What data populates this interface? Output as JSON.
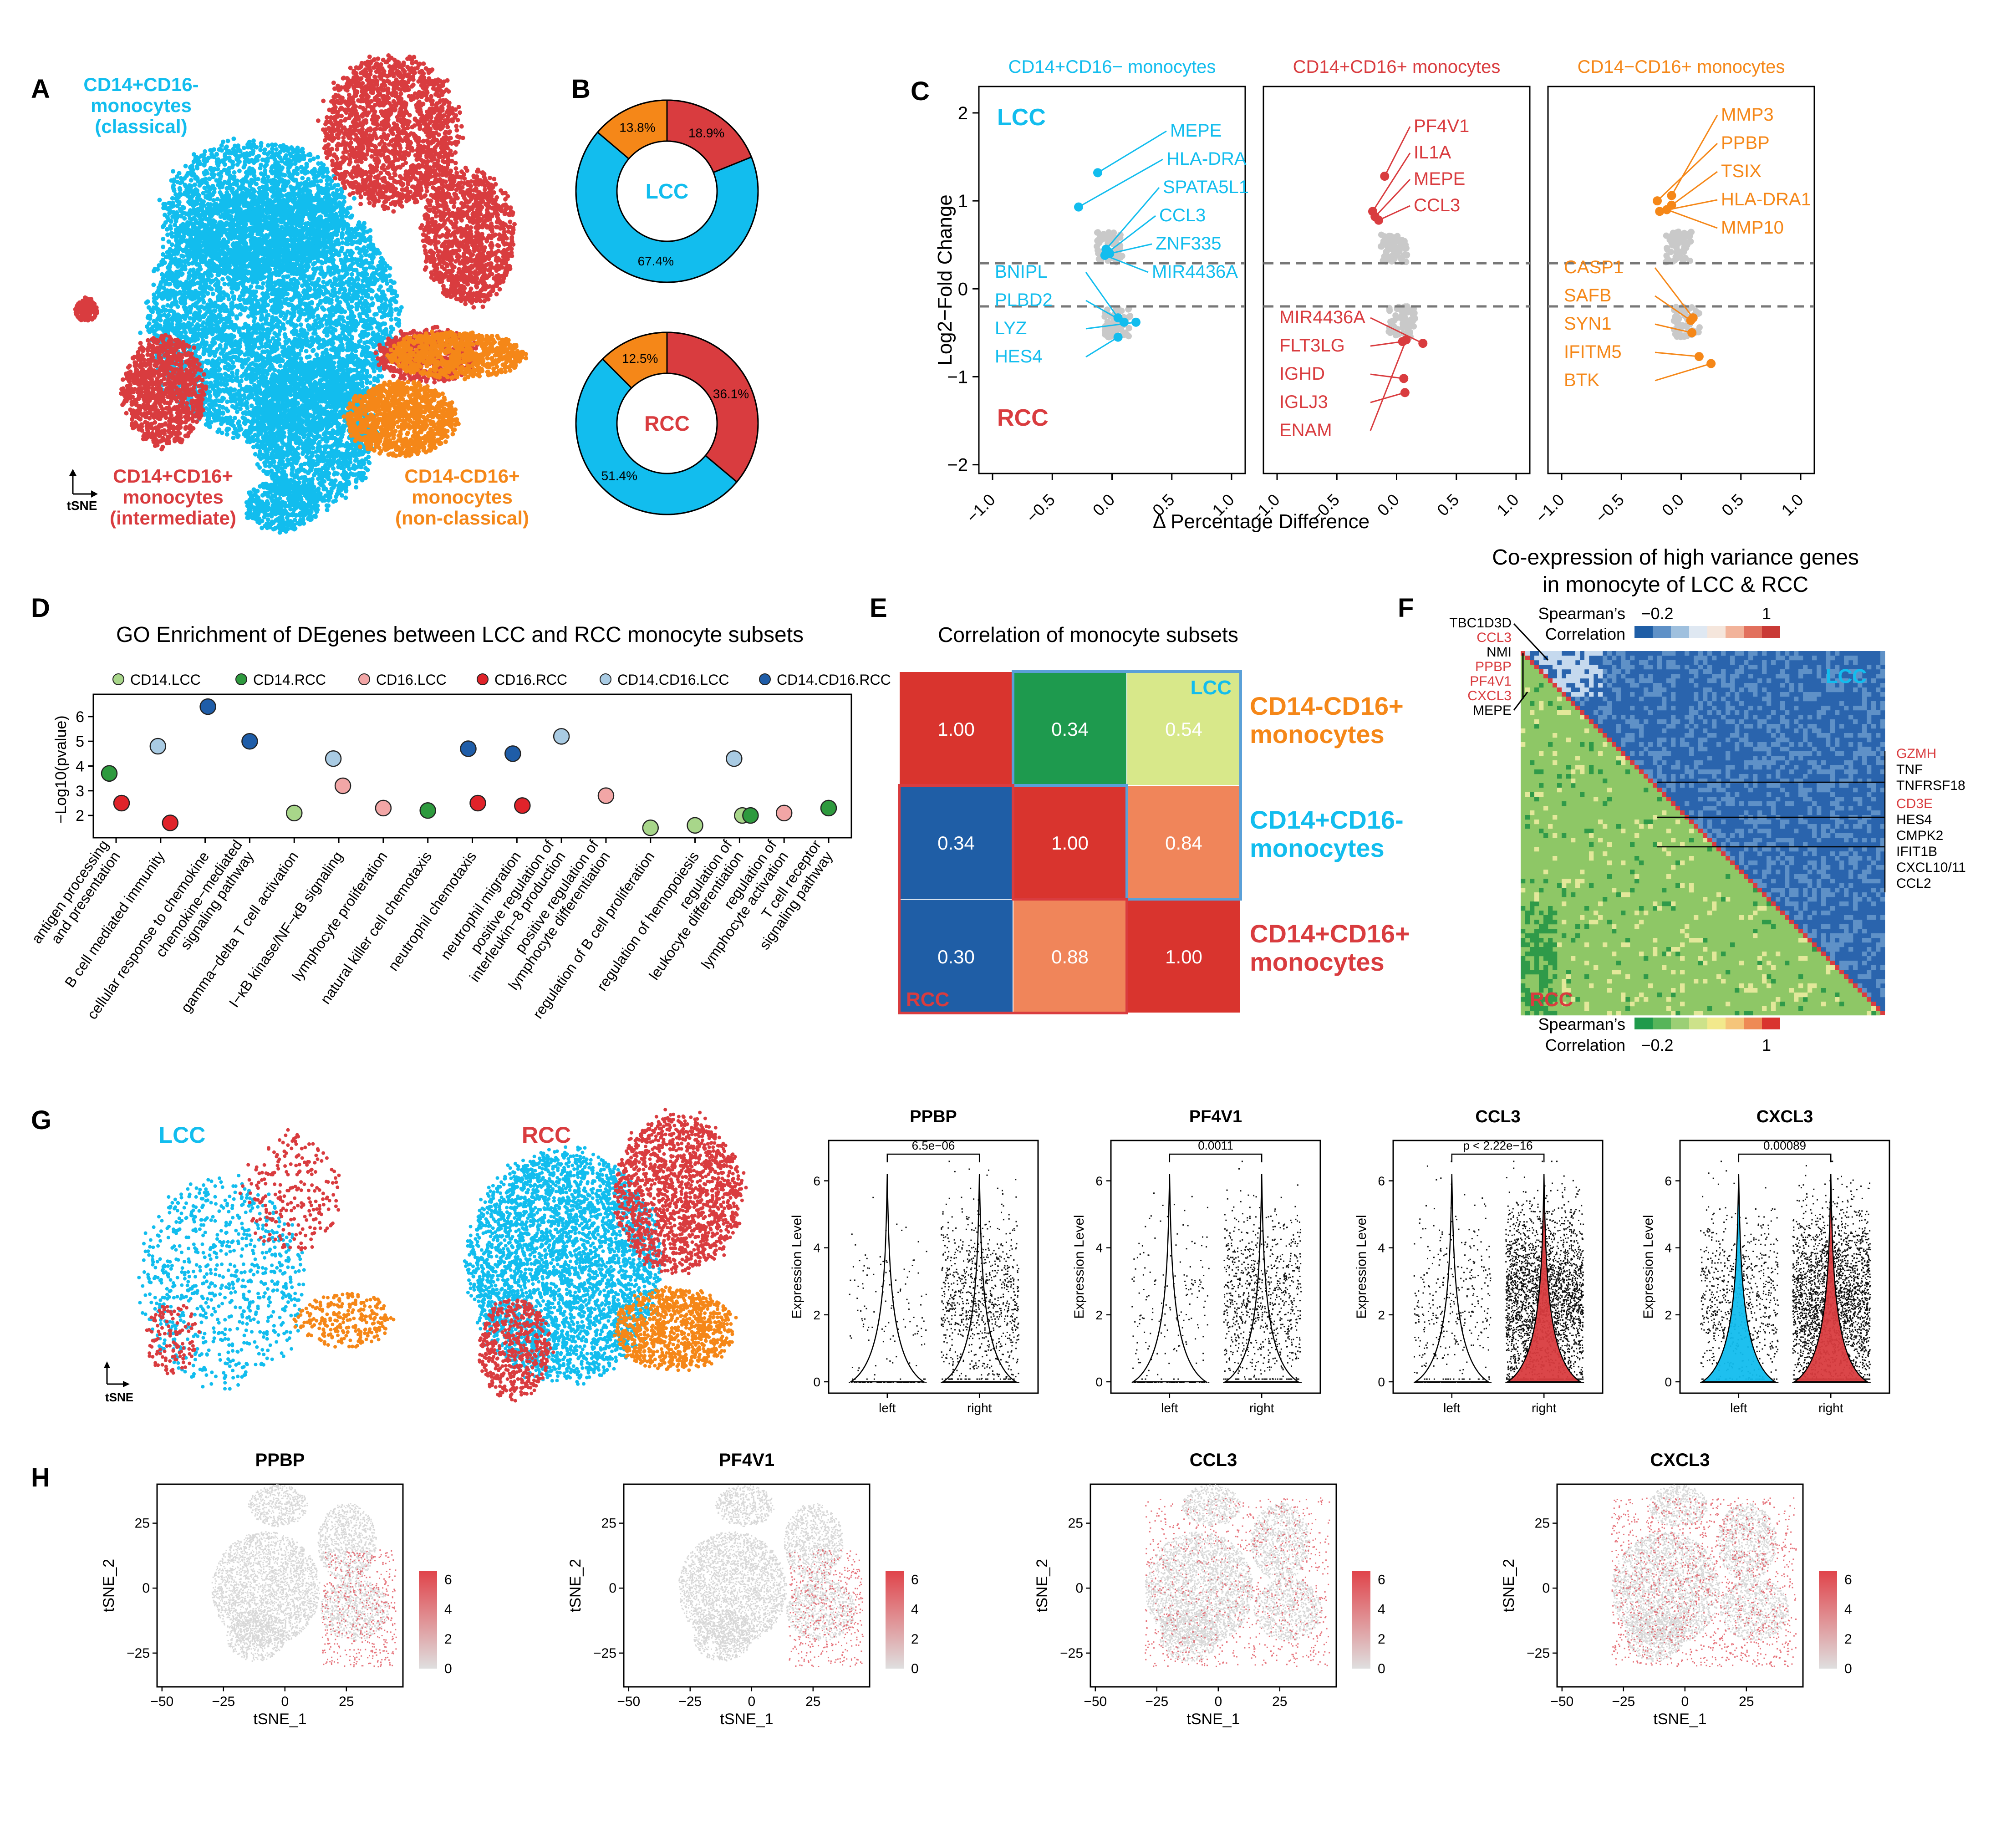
{
  "colors": {
    "lcc": "#12bdee",
    "rcc": "#d93c3f",
    "orange": "#f58718",
    "grey": "#c9c9c9",
    "heat_low": "#dfdfdf",
    "heat_high": "#e0434a",
    "dark_blue": "#1e5fa6",
    "mid_blue": "#5b8ec4",
    "light_blue_cell": "#9fc0de",
    "green_dark": "#2a9d4c",
    "green_light": "#92c871",
    "yellow_green": "#d7e68f"
  },
  "panels": {
    "A": "A",
    "B": "B",
    "C": "C",
    "D": "D",
    "E": "E",
    "F": "F",
    "G": "G",
    "H": "H"
  },
  "chart_data": [
    {
      "panel": "A",
      "type": "scatter",
      "title": "",
      "axis_label": "tSNE",
      "clusters": [
        {
          "label_lines": [
            "CD14+CD16-",
            "monocytes",
            "(classical)"
          ],
          "color": "lcc"
        },
        {
          "label_lines": [
            "CD14+CD16+",
            "monocytes",
            "(intermediate)"
          ],
          "color": "rcc"
        },
        {
          "label_lines": [
            "CD14-CD16+",
            "monocytes",
            "(non-classical)"
          ],
          "color": "orange"
        }
      ]
    },
    {
      "panel": "B",
      "type": "pie",
      "donuts": [
        {
          "center_label": "LCC",
          "slices": [
            {
              "name": "CD14+CD16+",
              "value": 18.9,
              "label": "18.9%",
              "color": "rcc"
            },
            {
              "name": "CD14+CD16-",
              "value": 67.4,
              "label": "67.4%",
              "color": "lcc"
            },
            {
              "name": "CD14-CD16+",
              "value": 13.8,
              "label": "13.8%",
              "color": "orange"
            }
          ]
        },
        {
          "center_label": "RCC",
          "slices": [
            {
              "name": "CD14+CD16+",
              "value": 36.1,
              "label": "36.1%",
              "color": "rcc"
            },
            {
              "name": "CD14+CD16-",
              "value": 51.4,
              "label": "51.4%",
              "color": "lcc"
            },
            {
              "name": "CD14-CD16+",
              "value": 12.5,
              "label": "12.5%",
              "color": "orange"
            }
          ]
        }
      ]
    },
    {
      "panel": "C",
      "type": "scatter",
      "ylabel": "Log2−Fold Change",
      "xlabel": "Δ Percentage Difference",
      "xlim": [
        -1.0,
        1.0
      ],
      "ylim": [
        -2.1,
        2.3
      ],
      "x_ticks": [
        "−1.0",
        "−0.5",
        "0.0",
        "0.5",
        "1.0"
      ],
      "x_tick_values": [
        -1.0,
        -0.5,
        0.0,
        0.5,
        1.0
      ],
      "y_ticks": [
        "2",
        "1",
        "0",
        "−1",
        "−2"
      ],
      "y_tick_values": [
        2,
        1,
        0,
        -1,
        -2
      ],
      "hlines": [
        0.29,
        -0.2
      ],
      "corner_labels": {
        "top": "LCC",
        "bottom": "RCC"
      },
      "facets": [
        {
          "title": "CD14+CD16− monocytes",
          "color": "lcc",
          "up": [
            {
              "gene": "MEPE",
              "x": -0.12,
              "y": 1.32
            },
            {
              "gene": "HLA-DRA",
              "x": -0.28,
              "y": 0.93
            },
            {
              "gene": "SPATA5L1",
              "x": -0.05,
              "y": 0.45
            },
            {
              "gene": "CCL3",
              "x": -0.03,
              "y": 0.42
            },
            {
              "gene": "ZNF335",
              "x": -0.02,
              "y": 0.4
            },
            {
              "gene": "MIR4436A",
              "x": -0.06,
              "y": 0.38
            }
          ],
          "down": [
            {
              "gene": "BNIPL",
              "x": 0.05,
              "y": -0.33
            },
            {
              "gene": "PLBD2",
              "x": 0.1,
              "y": -0.38
            },
            {
              "gene": "LYZ",
              "x": 0.2,
              "y": -0.38
            },
            {
              "gene": "HES4",
              "x": 0.05,
              "y": -0.55
            }
          ],
          "up_labels": [
            "MEPE",
            "HLA-DRA",
            "SPATA5L1",
            "CCL3",
            "ZNF335",
            "MIR4436A"
          ],
          "down_labels": [
            "BNIPL",
            "PLBD2",
            "LYZ",
            "HES4"
          ]
        },
        {
          "title": "CD14+CD16+ monocytes",
          "color": "rcc",
          "up": [
            {
              "gene": "PF4V1",
              "x": -0.1,
              "y": 1.28
            },
            {
              "gene": "IL1A",
              "x": -0.2,
              "y": 0.88
            },
            {
              "gene": "MEPE",
              "x": -0.18,
              "y": 0.82
            },
            {
              "gene": "CCL3",
              "x": -0.15,
              "y": 0.78
            }
          ],
          "down": [
            {
              "gene": "MIR4436A",
              "x": 0.22,
              "y": -0.62
            },
            {
              "gene": "FLT3LG",
              "x": 0.05,
              "y": -0.6
            },
            {
              "gene": "IGHD",
              "x": 0.06,
              "y": -1.02
            },
            {
              "gene": "IGLJ3",
              "x": 0.07,
              "y": -1.18
            },
            {
              "gene": "ENAM",
              "x": 0.08,
              "y": -0.58
            }
          ],
          "up_labels": [
            "PF4V1",
            "IL1A",
            "MEPE",
            "CCL3"
          ],
          "down_labels": [
            "MIR4436A",
            "FLT3LG",
            "IGHD",
            "IGLJ3",
            "ENAM"
          ]
        },
        {
          "title": "CD14−CD16+ monocytes",
          "color": "orange",
          "up": [
            {
              "gene": "MMP3",
              "x": -0.08,
              "y": 1.06
            },
            {
              "gene": "PPBP",
              "x": -0.2,
              "y": 1.0
            },
            {
              "gene": "TSIX",
              "x": -0.08,
              "y": 0.95
            },
            {
              "gene": "HLA-DRA1",
              "x": -0.18,
              "y": 0.88
            },
            {
              "gene": "MMP10",
              "x": -0.12,
              "y": 0.9
            }
          ],
          "down": [
            {
              "gene": "CASP1",
              "x": 0.1,
              "y": -0.33
            },
            {
              "gene": "SAFB",
              "x": 0.08,
              "y": -0.36
            },
            {
              "gene": "SYN1",
              "x": 0.09,
              "y": -0.5
            },
            {
              "gene": "IFITM5",
              "x": 0.15,
              "y": -0.77
            },
            {
              "gene": "BTK",
              "x": 0.25,
              "y": -0.85
            }
          ],
          "up_labels": [
            "MMP3",
            "PPBP",
            "TSIX",
            "HLA-DRA1",
            "MMP10"
          ],
          "down_labels": [
            "CASP1",
            "SAFB",
            "SYN1",
            "IFITM5",
            "BTK"
          ]
        }
      ]
    },
    {
      "panel": "D",
      "type": "scatter",
      "title": "GO Enrichment of DEgenes between LCC and RCC monocyte subsets",
      "ylabel": "−Log10(pvalue)",
      "ylim": [
        1.1,
        6.9
      ],
      "y_ticks": [
        "6",
        "5",
        "4",
        "3",
        "2"
      ],
      "y_tick_values": [
        6,
        5,
        4,
        3,
        2
      ],
      "legend": [
        {
          "name": "CD14.LCC",
          "color": "#a8d68a"
        },
        {
          "name": "CD14.RCC",
          "color": "#2e9a3e"
        },
        {
          "name": "CD16.LCC",
          "color": "#f2a6a6"
        },
        {
          "name": "CD16.RCC",
          "color": "#e0232a"
        },
        {
          "name": "CD14.CD16.LCC",
          "color": "#a9cbe3"
        },
        {
          "name": "CD14.CD16.RCC",
          "color": "#1f5da8"
        }
      ],
      "categories": [
        "antigen processing\nand presentation",
        "B cell mediated immunity",
        "cellular response to chemokine",
        "chemokine−mediated\nsignaling pathway",
        "gamma−delta T cell activation",
        "I−κB kinase/NF−κB signaling",
        "lymphocyte proliferation",
        "natural killer cell chemotaxis",
        "neutrophil chemotaxis",
        "neutrophil migration",
        "positive regulation of\ninterleukin−8 production",
        "positive regulation of\nlymphocyte differentiation",
        "regulation of B cell proliferation",
        "regulation of hemopoiesis",
        "regulation of\nleukocyte differentiation",
        "regulation of\nlymphocyte activation",
        "T cell receptor\nsignaling pathway"
      ],
      "points": [
        {
          "cat": 0,
          "series": "CD14.RCC",
          "y": 3.7,
          "dx": -0.25
        },
        {
          "cat": 0,
          "series": "CD16.RCC",
          "y": 2.5,
          "dx": 0.2
        },
        {
          "cat": 1,
          "series": "CD14.CD16.LCC",
          "y": 4.8,
          "dx": -0.1
        },
        {
          "cat": 1,
          "series": "CD16.RCC",
          "y": 1.7,
          "dx": 0.35
        },
        {
          "cat": 2,
          "series": "CD14.CD16.RCC",
          "y": 6.4,
          "dx": 0.1
        },
        {
          "cat": 3,
          "series": "CD14.CD16.RCC",
          "y": 5.0,
          "dx": 0.0
        },
        {
          "cat": 4,
          "series": "CD14.LCC",
          "y": 2.1,
          "dx": 0.0
        },
        {
          "cat": 5,
          "series": "CD14.CD16.LCC",
          "y": 4.3,
          "dx": -0.2
        },
        {
          "cat": 5,
          "series": "CD16.LCC",
          "y": 3.2,
          "dx": 0.15
        },
        {
          "cat": 6,
          "series": "CD16.LCC",
          "y": 2.3,
          "dx": 0.0
        },
        {
          "cat": 7,
          "series": "CD14.RCC",
          "y": 2.2,
          "dx": 0.0
        },
        {
          "cat": 8,
          "series": "CD14.CD16.RCC",
          "y": 4.7,
          "dx": -0.15
        },
        {
          "cat": 8,
          "series": "CD16.RCC",
          "y": 2.5,
          "dx": 0.2
        },
        {
          "cat": 9,
          "series": "CD14.CD16.RCC",
          "y": 4.5,
          "dx": -0.15
        },
        {
          "cat": 9,
          "series": "CD16.RCC",
          "y": 2.4,
          "dx": 0.2
        },
        {
          "cat": 10,
          "series": "CD14.CD16.LCC",
          "y": 5.2,
          "dx": 0.0
        },
        {
          "cat": 11,
          "series": "CD16.LCC",
          "y": 2.8,
          "dx": 0.0
        },
        {
          "cat": 12,
          "series": "CD14.LCC",
          "y": 1.5,
          "dx": 0.0
        },
        {
          "cat": 13,
          "series": "CD14.LCC",
          "y": 1.6,
          "dx": 0.0
        },
        {
          "cat": 14,
          "series": "CD14.CD16.LCC",
          "y": 4.3,
          "dx": -0.2
        },
        {
          "cat": 14,
          "series": "CD14.LCC",
          "y": 2.0,
          "dx": 0.1
        },
        {
          "cat": 14,
          "series": "CD14.RCC",
          "y": 2.0,
          "dx": 0.4
        },
        {
          "cat": 15,
          "series": "CD16.LCC",
          "y": 2.1,
          "dx": 0.0
        },
        {
          "cat": 16,
          "series": "CD14.RCC",
          "y": 2.3,
          "dx": 0.0
        }
      ]
    },
    {
      "panel": "E",
      "type": "heatmap",
      "title": "Correlation of monocyte subsets",
      "row_labels": [
        [
          "CD14-CD16+",
          "monocytes"
        ],
        [
          "CD14+CD16-",
          "monocytes"
        ],
        [
          "CD14+CD16+",
          "monocytes"
        ]
      ],
      "row_label_colors": [
        "orange",
        "lcc",
        "rcc"
      ],
      "corner_labels": {
        "top": "LCC",
        "bottom": "RCC"
      },
      "values": [
        [
          1.0,
          0.34,
          0.54
        ],
        [
          0.34,
          1.0,
          0.84
        ],
        [
          0.3,
          0.88,
          1.0
        ]
      ],
      "value_labels": [
        [
          "1.00",
          "0.34",
          "0.54"
        ],
        [
          "0.34",
          "1.00",
          "0.84"
        ],
        [
          "0.30",
          "0.88",
          "1.00"
        ]
      ],
      "cell_colors": [
        [
          "#d9342e",
          "#1e9a4e",
          "#d8e88a"
        ],
        [
          "#1f5ea6",
          "#d9342e",
          "#f0855a"
        ],
        [
          "#1f5ea6",
          "#f0855a",
          "#d9342e"
        ]
      ]
    },
    {
      "panel": "F",
      "type": "heatmap",
      "title_lines": [
        "Co-expression of high variance genes",
        "in monocyte of LCC & RCC"
      ],
      "legend_top": {
        "title_lines": [
          "Spearman’s",
          "Correlation"
        ],
        "min_label": "−0.2",
        "max_label": "1"
      },
      "legend_bottom": {
        "title_lines": [
          "Spearman’s",
          "Correlation"
        ],
        "min_label": "−0.2",
        "max_label": "1"
      },
      "corner_labels": {
        "top": "LCC",
        "bottom": "RCC"
      },
      "left_genes": [
        {
          "gene": "TBC1D3D",
          "highlight": false
        },
        {
          "gene": "CCL3",
          "highlight": true
        },
        {
          "gene": "NMI",
          "highlight": false
        },
        {
          "gene": "PPBP",
          "highlight": true
        },
        {
          "gene": "PF4V1",
          "highlight": true
        },
        {
          "gene": "CXCL3",
          "highlight": true
        },
        {
          "gene": "MEPE",
          "highlight": false
        }
      ],
      "right_genes": [
        {
          "gene": "GZMH",
          "highlight": true
        },
        {
          "gene": "TNF",
          "highlight": false
        },
        {
          "gene": "TNFRSF18",
          "highlight": false
        },
        {
          "gene": "CD3E",
          "highlight": true
        },
        {
          "gene": "HES4",
          "highlight": false
        },
        {
          "gene": "CMPK2",
          "highlight": false
        },
        {
          "gene": "IFIT1B",
          "highlight": false
        },
        {
          "gene": "CXCL10/11",
          "highlight": false
        },
        {
          "gene": "CCL2",
          "highlight": false
        }
      ]
    },
    {
      "panel": "G",
      "type": "scatter",
      "tsne": [
        {
          "label": "LCC",
          "color": "lcc"
        },
        {
          "label": "RCC",
          "color": "rcc"
        }
      ],
      "axis_label": "tSNE",
      "violins": [
        {
          "title": "PPBP",
          "pvalue": "6.5e−06",
          "ylabel": "Expression Level",
          "xcats": [
            "left",
            "right"
          ],
          "y_ticks": [
            "0",
            "2",
            "4",
            "6"
          ],
          "fills": [
            "none",
            "none"
          ]
        },
        {
          "title": "PF4V1",
          "pvalue": "0.0011",
          "ylabel": "Expression Level",
          "xcats": [
            "left",
            "right"
          ],
          "y_ticks": [
            "0",
            "2",
            "4",
            "6"
          ],
          "fills": [
            "none",
            "none"
          ]
        },
        {
          "title": "CCL3",
          "pvalue": "p < 2.22e−16",
          "ylabel": "Expression Level",
          "xcats": [
            "left",
            "right"
          ],
          "y_ticks": [
            "0",
            "2",
            "4",
            "6"
          ],
          "fills": [
            "none",
            "rcc"
          ]
        },
        {
          "title": "CXCL3",
          "pvalue": "0.00089",
          "ylabel": "Expression Level",
          "xcats": [
            "left",
            "right"
          ],
          "y_ticks": [
            "0",
            "2",
            "4",
            "6"
          ],
          "fills": [
            "lcc",
            "rcc"
          ]
        }
      ]
    },
    {
      "panel": "H",
      "type": "scatter",
      "xlabel": "tSNE_1",
      "ylabel": "tSNE_2",
      "x_ticks": [
        "−50",
        "−25",
        "0",
        "25"
      ],
      "x_tick_values": [
        -50,
        -25,
        0,
        25
      ],
      "y_ticks": [
        "25",
        "0",
        "−25"
      ],
      "y_tick_values": [
        25,
        0,
        -25
      ],
      "xlim": [
        -52,
        48
      ],
      "ylim": [
        -38,
        40
      ],
      "colorbar_ticks": [
        "6",
        "4",
        "2",
        "0"
      ],
      "colorbar_tick_values": [
        6,
        4,
        2,
        0
      ],
      "plots": [
        {
          "title": "PPBP"
        },
        {
          "title": "PF4V1"
        },
        {
          "title": "CCL3"
        },
        {
          "title": "CXCL3"
        }
      ]
    }
  ]
}
